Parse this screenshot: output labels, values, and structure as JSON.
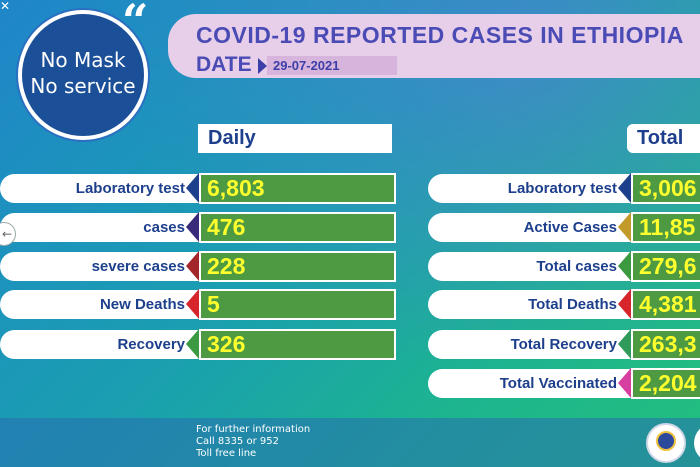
{
  "header": {
    "title": "COVID-19 REPORTED CASES IN ETHIOPIA",
    "date_label": "DATE",
    "date_value": "29-07-2021"
  },
  "logo": {
    "line1": "No Mask",
    "line2": "No service",
    "quote": "“"
  },
  "daily": {
    "heading": "Daily",
    "rows": [
      {
        "label": "Laboratory test",
        "value": "6,803",
        "arrow_color": "#1d3f8c"
      },
      {
        "label": "cases",
        "value": "476",
        "arrow_color": "#3a2a7a"
      },
      {
        "label": "severe cases",
        "value": "228",
        "arrow_color": "#a3272a"
      },
      {
        "label": "New Deaths",
        "value": "5",
        "arrow_color": "#d7262b"
      },
      {
        "label": "Recovery",
        "value": "326",
        "arrow_color": "#3b9a3f"
      }
    ]
  },
  "total": {
    "heading": "Total",
    "rows": [
      {
        "label": "Laboratory test",
        "value": "3,006",
        "arrow_color": "#1d3f8c"
      },
      {
        "label": "Active Cases",
        "value": "11,85",
        "arrow_color": "#c29a2a"
      },
      {
        "label": "Total cases",
        "value": "279,6",
        "arrow_color": "#3b9a3f"
      },
      {
        "label": "Total Deaths",
        "value": "4,381",
        "arrow_color": "#d7262b"
      },
      {
        "label": "Total Recovery",
        "value": "263,3",
        "arrow_color": "#2f9a5a"
      },
      {
        "label": "Total Vaccinated",
        "value": "2,204",
        "arrow_color": "#d63fa0"
      }
    ]
  },
  "footer": {
    "line1": "For further information",
    "line2": "Call 8335 or 952",
    "line3": "Toll free line"
  },
  "colors": {
    "value_box_bg": "#4d9a42",
    "value_text": "#ffff2e",
    "label_text": "#1d3f8c"
  }
}
